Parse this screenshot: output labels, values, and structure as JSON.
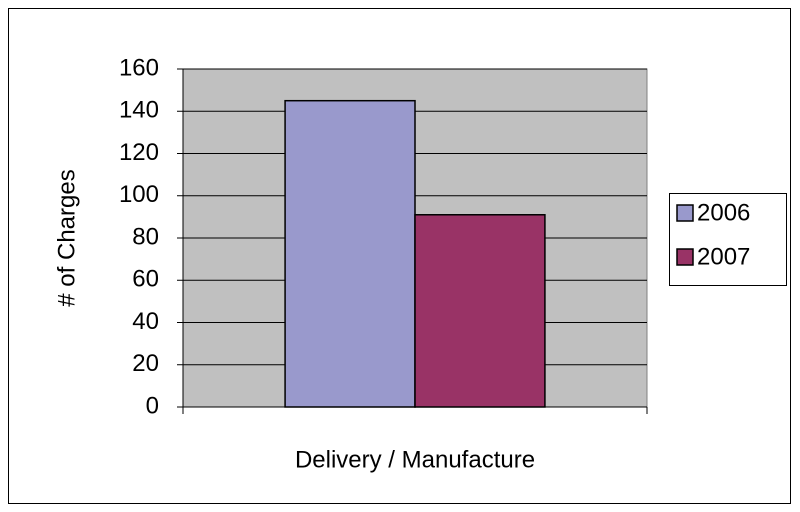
{
  "chart_data": {
    "type": "bar",
    "categories": [
      "Delivery / Manufacture"
    ],
    "series": [
      {
        "name": "2006",
        "color": "#9999cc",
        "values": [
          145
        ]
      },
      {
        "name": "2007",
        "color": "#993366",
        "values": [
          91
        ]
      }
    ],
    "y_label": "# of Charges",
    "ylim": [
      0,
      160
    ],
    "yticks": [
      0,
      20,
      40,
      60,
      80,
      100,
      120,
      140,
      160
    ],
    "grid": true,
    "legend": "right"
  }
}
